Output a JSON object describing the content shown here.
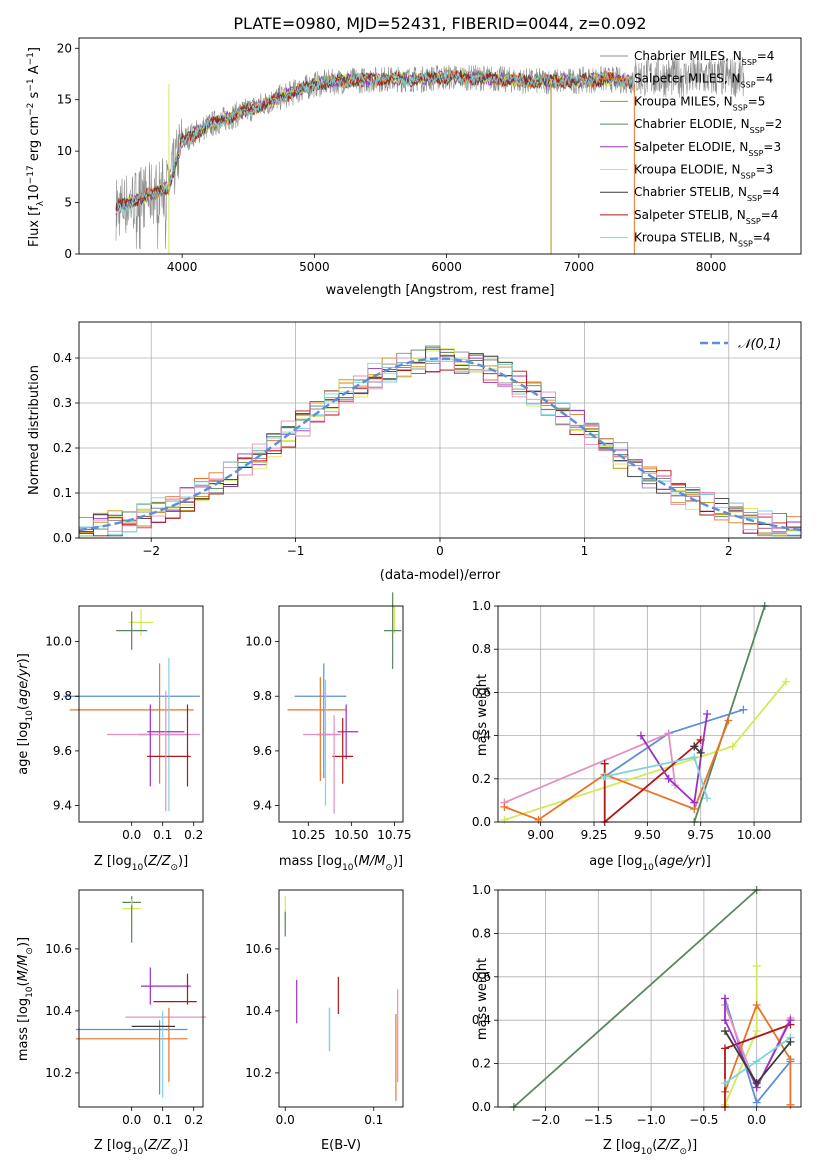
{
  "title": "PLATE=0980, MJD=52431, FIBERID=0044, z=0.092",
  "chart_data": [
    {
      "type": "line",
      "panel": "spectrum",
      "xlabel": "wavelength [Angstrom, rest frame]",
      "ylabel": "Flux [f_λ 10^-17 erg cm^-2 s^-1 A^-1]",
      "xlim": [
        3220,
        8680
      ],
      "ylim": [
        0,
        21
      ],
      "xticks": [
        4000,
        5000,
        6000,
        7000,
        8000
      ],
      "yticks": [
        0,
        5,
        10,
        15,
        20
      ],
      "legend_position": "right",
      "series": [
        {
          "name": "Chabrier MILES, NSSP=4",
          "color": "#8c8c8c"
        },
        {
          "name": "Salpeter MILES, NSSP=4",
          "color": "#e8742a"
        },
        {
          "name": "Kroupa MILES, NSSP=5",
          "color": "#bf8d12"
        },
        {
          "name": "Chabrier ELODIE, NSSP=2",
          "color": "#5a8560"
        },
        {
          "name": "Salpeter ELODIE, NSSP=3",
          "color": "#9b30c4"
        },
        {
          "name": "Kroupa ELODIE, NSSP=3",
          "color": "#d4e85a"
        },
        {
          "name": "Chabrier STELIB, NSSP=4",
          "color": "#3a3a3a"
        },
        {
          "name": "Salpeter STELIB, NSSP=4",
          "color": "#b01818"
        },
        {
          "name": "Kroupa STELIB, NSSP=4",
          "color": "#7fd3e0"
        }
      ],
      "continuum": {
        "x": [
          3500,
          3700,
          3900,
          4000,
          4200,
          4500,
          4800,
          5000,
          5200,
          5500,
          5800,
          6000,
          6300,
          6600,
          6900,
          7200,
          7400
        ],
        "y": [
          4.5,
          5.5,
          6.5,
          11,
          12.5,
          14,
          15.5,
          16.5,
          16.8,
          17,
          17,
          17.2,
          17.1,
          16.8,
          16.8,
          17,
          16.8
        ]
      }
    },
    {
      "type": "line",
      "panel": "residual histogram",
      "xlabel": "(data-model)/error",
      "ylabel": "Normed distribution",
      "xlim": [
        -2.5,
        2.5
      ],
      "ylim": [
        0,
        0.48
      ],
      "xticks": [
        -2,
        -1,
        0,
        1,
        2
      ],
      "yticks": [
        0.0,
        0.1,
        0.2,
        0.3,
        0.4
      ],
      "grid": true,
      "legend_position": "top-right",
      "reference_curve": {
        "name": "𝒩(0,1)",
        "color": "#5b8fd8",
        "dash": true
      },
      "histogram": {
        "bin_width": 0.1,
        "x_range": [
          -2.5,
          2.5
        ],
        "note_series_count": 9
      }
    },
    {
      "type": "scatter",
      "panel": "age vs Z",
      "xlabel": "Z [log10(Z/Z⊙)]",
      "ylabel": "age  [log10(age/yr)]",
      "xlim": [
        -0.17,
        0.23
      ],
      "ylim": [
        9.34,
        10.13
      ],
      "xticks": [
        0.0,
        0.1,
        0.2
      ],
      "yticks": [
        9.4,
        9.6,
        9.8,
        10.0
      ],
      "points": [
        {
          "x": 0.03,
          "y": 10.07,
          "xerr": 0.04,
          "yerr": 0.05,
          "color": "#d4e85a"
        },
        {
          "x": 0.0,
          "y": 10.04,
          "xerr": 0.05,
          "yerr": 0.07,
          "color": "#5a8560"
        },
        {
          "x": 0.0,
          "y": 9.8,
          "xerr": 0.22,
          "yerr": 0.0,
          "color": "#5b8fd8"
        },
        {
          "x": 0.0,
          "y": 9.75,
          "xerr": 0.2,
          "yerr": 0.0,
          "color": "#e8742a"
        },
        {
          "x": 0.09,
          "y": 9.7,
          "xerr": 0.0,
          "yerr": 0.22,
          "color": "#e8742a"
        },
        {
          "x": 0.12,
          "y": 9.66,
          "xerr": 0.0,
          "yerr": 0.28,
          "color": "#7fd3e0"
        },
        {
          "x": 0.1,
          "y": 9.66,
          "xerr": 0.08,
          "yerr": 0.0,
          "color": "#3a3a3a"
        },
        {
          "x": 0.07,
          "y": 9.66,
          "xerr": 0.15,
          "yerr": 0.0,
          "color": "#e58fc0"
        },
        {
          "x": 0.11,
          "y": 9.67,
          "xerr": 0.06,
          "yerr": 0.0,
          "color": "#9b30c4"
        },
        {
          "x": 0.06,
          "y": 9.62,
          "xerr": 0.0,
          "yerr": 0.15,
          "color": "#9b30c4"
        },
        {
          "x": 0.18,
          "y": 9.62,
          "xerr": 0.0,
          "yerr": 0.15,
          "color": "#b01818"
        },
        {
          "x": 0.12,
          "y": 9.58,
          "xerr": 0.07,
          "yerr": 0.0,
          "color": "#b01818"
        },
        {
          "x": 0.11,
          "y": 9.6,
          "xerr": 0.0,
          "yerr": 0.22,
          "color": "#e58fc0"
        }
      ]
    },
    {
      "type": "scatter",
      "panel": "age vs mass",
      "xlabel": "mass [log10(M/M⊙)]",
      "ylabel": "",
      "xlim": [
        10.08,
        10.8
      ],
      "ylim": [
        9.34,
        10.13
      ],
      "xticks": [
        10.25,
        10.5,
        10.75
      ],
      "yticks": [
        9.4,
        9.6,
        9.8,
        10.0
      ],
      "points": [
        {
          "x": 10.75,
          "y": 10.08,
          "xerr": 0.0,
          "yerr": 0.05,
          "color": "#d4e85a"
        },
        {
          "x": 10.74,
          "y": 10.04,
          "xerr": 0.05,
          "yerr": 0.14,
          "color": "#5a8560"
        },
        {
          "x": 10.32,
          "y": 9.8,
          "xerr": 0.15,
          "yerr": 0.0,
          "color": "#5b8fd8"
        },
        {
          "x": 10.3,
          "y": 9.75,
          "xerr": 0.17,
          "yerr": 0.0,
          "color": "#e8742a"
        },
        {
          "x": 10.34,
          "y": 9.71,
          "xerr": 0.0,
          "yerr": 0.21,
          "color": "#5b8fd8"
        },
        {
          "x": 10.32,
          "y": 9.68,
          "xerr": 0.0,
          "yerr": 0.19,
          "color": "#e8742a"
        },
        {
          "x": 10.35,
          "y": 9.63,
          "xerr": 0.0,
          "yerr": 0.23,
          "color": "#7fd3e0"
        },
        {
          "x": 10.36,
          "y": 9.66,
          "xerr": 0.06,
          "yerr": 0.0,
          "color": "#3a3a3a"
        },
        {
          "x": 10.33,
          "y": 9.66,
          "xerr": 0.11,
          "yerr": 0.0,
          "color": "#e58fc0"
        },
        {
          "x": 10.47,
          "y": 9.67,
          "xerr": 0.0,
          "yerr": 0.1,
          "color": "#9b30c4"
        },
        {
          "x": 10.48,
          "y": 9.67,
          "xerr": 0.06,
          "yerr": 0.0,
          "color": "#9b30c4"
        },
        {
          "x": 10.45,
          "y": 9.6,
          "xerr": 0.0,
          "yerr": 0.12,
          "color": "#b01818"
        },
        {
          "x": 10.45,
          "y": 9.58,
          "xerr": 0.06,
          "yerr": 0.0,
          "color": "#b01818"
        },
        {
          "x": 10.4,
          "y": 9.55,
          "xerr": 0.0,
          "yerr": 0.18,
          "color": "#e58fc0"
        }
      ]
    },
    {
      "type": "line",
      "panel": "mass weight vs age",
      "xlabel": "age  [log10(age/yr)]",
      "ylabel": "mass weight",
      "xlim": [
        8.8,
        10.22
      ],
      "ylim": [
        0,
        1.0
      ],
      "xticks": [
        9.0,
        9.25,
        9.5,
        9.75,
        10.0
      ],
      "yticks": [
        0.0,
        0.2,
        0.4,
        0.6,
        0.8,
        1.0
      ],
      "grid": true,
      "series": [
        {
          "color": "#5a8560",
          "x": [
            9.72,
            10.05
          ],
          "y": [
            0.0,
            1.0
          ]
        },
        {
          "color": "#d4e85a",
          "x": [
            8.83,
            9.9,
            10.15
          ],
          "y": [
            0.01,
            0.35,
            0.65
          ]
        },
        {
          "color": "#5b8fd8",
          "x": [
            9.3,
            9.6,
            9.95
          ],
          "y": [
            0.21,
            0.41,
            0.52
          ]
        },
        {
          "color": "#e58fc0",
          "x": [
            8.83,
            9.6,
            9.63
          ],
          "y": [
            0.09,
            0.41,
            0.17
          ]
        },
        {
          "color": "#e8742a",
          "x": [
            8.83,
            8.99,
            9.3,
            9.72,
            9.88
          ],
          "y": [
            0.07,
            0.01,
            0.22,
            0.06,
            0.47
          ]
        },
        {
          "color": "#b01818",
          "x": [
            9.3,
            9.3,
            9.72,
            9.75
          ],
          "y": [
            0.27,
            0.0,
            0.35,
            0.38
          ]
        },
        {
          "color": "#9b30c4",
          "x": [
            9.47,
            9.6,
            9.72,
            9.78
          ],
          "y": [
            0.4,
            0.2,
            0.09,
            0.5
          ]
        },
        {
          "color": "#7fd3e0",
          "x": [
            9.3,
            9.72,
            9.78
          ],
          "y": [
            0.21,
            0.3,
            0.11
          ]
        },
        {
          "color": "#3a3a3a",
          "x": [
            9.72,
            9.75
          ],
          "y": [
            0.35,
            0.32
          ]
        }
      ]
    },
    {
      "type": "scatter",
      "panel": "mass vs Z",
      "xlabel": "Z [log10(Z/Z⊙)]",
      "ylabel": "mass [log10(M/M⊙)]",
      "xlim": [
        -0.17,
        0.23
      ],
      "ylim": [
        10.09,
        10.79
      ],
      "xticks": [
        0.0,
        0.1,
        0.2
      ],
      "yticks": [
        10.2,
        10.4,
        10.6
      ],
      "points": [
        {
          "x": 0.0,
          "y": 10.75,
          "xerr": 0.03,
          "yerr": 0.02,
          "color": "#5a8560"
        },
        {
          "x": 0.0,
          "y": 10.73,
          "xerr": 0.03,
          "yerr": 0.03,
          "color": "#d4e85a"
        },
        {
          "x": 0.0,
          "y": 10.68,
          "xerr": 0.0,
          "yerr": 0.06,
          "color": "#5a8560"
        },
        {
          "x": 0.11,
          "y": 10.48,
          "xerr": 0.08,
          "yerr": 0.0,
          "color": "#9b30c4"
        },
        {
          "x": 0.06,
          "y": 10.48,
          "xerr": 0.0,
          "yerr": 0.06,
          "color": "#9b30c4"
        },
        {
          "x": 0.18,
          "y": 10.47,
          "xerr": 0.0,
          "yerr": 0.05,
          "color": "#b01818"
        },
        {
          "x": 0.14,
          "y": 10.43,
          "xerr": 0.07,
          "yerr": 0.0,
          "color": "#b01818"
        },
        {
          "x": 0.11,
          "y": 10.38,
          "xerr": 0.13,
          "yerr": 0.0,
          "color": "#e58fc0"
        },
        {
          "x": 0.0,
          "y": 10.34,
          "xerr": 0.18,
          "yerr": 0.0,
          "color": "#5b8fd8"
        },
        {
          "x": 0.0,
          "y": 10.31,
          "xerr": 0.18,
          "yerr": 0.0,
          "color": "#e8742a"
        },
        {
          "x": 0.09,
          "y": 10.25,
          "xerr": 0.0,
          "yerr": 0.12,
          "color": "#5b8fd8"
        },
        {
          "x": 0.1,
          "y": 10.26,
          "xerr": 0.0,
          "yerr": 0.14,
          "color": "#7fd3e0"
        },
        {
          "x": 0.12,
          "y": 10.29,
          "xerr": 0.0,
          "yerr": 0.12,
          "color": "#e8742a"
        },
        {
          "x": 0.07,
          "y": 10.35,
          "xerr": 0.07,
          "yerr": 0.0,
          "color": "#3a3a3a"
        }
      ]
    },
    {
      "type": "scatter",
      "panel": "mass vs E(B-V)",
      "xlabel": "E(B-V)",
      "ylabel": "",
      "xlim": [
        -0.007,
        0.133
      ],
      "ylim": [
        10.09,
        10.79
      ],
      "xticks": [
        0.0,
        0.1
      ],
      "yticks": [
        10.2,
        10.4,
        10.6
      ],
      "points": [
        {
          "x": 0.0,
          "y": 10.73,
          "xerr": 0.0,
          "yerr": 0.04,
          "color": "#d4e85a"
        },
        {
          "x": 0.0,
          "y": 10.68,
          "xerr": 0.0,
          "yerr": 0.04,
          "color": "#5a8560"
        },
        {
          "x": 0.013,
          "y": 10.43,
          "xerr": 0.0,
          "yerr": 0.07,
          "color": "#9b30c4"
        },
        {
          "x": 0.06,
          "y": 10.45,
          "xerr": 0.0,
          "yerr": 0.06,
          "color": "#b01818"
        },
        {
          "x": 0.05,
          "y": 10.34,
          "xerr": 0.0,
          "yerr": 0.07,
          "color": "#5b8fd8"
        },
        {
          "x": 0.05,
          "y": 10.34,
          "xerr": 0.0,
          "yerr": 0.07,
          "color": "#7fd3e0"
        },
        {
          "x": 0.125,
          "y": 10.25,
          "xerr": 0.0,
          "yerr": 0.14,
          "color": "#e8742a"
        },
        {
          "x": 0.127,
          "y": 10.32,
          "xerr": 0.0,
          "yerr": 0.15,
          "color": "#e58fc0"
        }
      ]
    },
    {
      "type": "line",
      "panel": "mass weight vs Z",
      "xlabel": "Z [log10(Z/Z⊙)]",
      "ylabel": "mass weight",
      "xlim": [
        -2.45,
        0.42
      ],
      "ylim": [
        0,
        1.0
      ],
      "xticks": [
        -2.0,
        -1.5,
        -1.0,
        -0.5,
        0.0
      ],
      "yticks": [
        0.0,
        0.2,
        0.4,
        0.6,
        0.8,
        1.0
      ],
      "grid": true,
      "series": [
        {
          "color": "#5a8560",
          "x": [
            -2.3,
            0.0
          ],
          "y": [
            0.0,
            1.0
          ]
        },
        {
          "color": "#d4e85a",
          "x": [
            -0.3,
            0.0,
            0.0
          ],
          "y": [
            0.01,
            0.35,
            0.65
          ]
        },
        {
          "color": "#5b8fd8",
          "x": [
            -0.3,
            0.0,
            0.32
          ],
          "y": [
            0.5,
            0.02,
            0.21
          ]
        },
        {
          "color": "#e58fc0",
          "x": [
            -0.3,
            0.0,
            0.32
          ],
          "y": [
            0.47,
            0.09,
            0.41
          ]
        },
        {
          "color": "#e8742a",
          "x": [
            -0.3,
            0.0,
            0.32,
            0.32
          ],
          "y": [
            0.07,
            0.47,
            0.22,
            0.01
          ]
        },
        {
          "color": "#b01818",
          "x": [
            -0.3,
            -0.3,
            0.32
          ],
          "y": [
            0.0,
            0.27,
            0.38
          ]
        },
        {
          "color": "#9b30c4",
          "x": [
            -0.3,
            -0.3,
            0.0,
            0.32
          ],
          "y": [
            0.5,
            0.4,
            0.09,
            0.4
          ]
        },
        {
          "color": "#7fd3e0",
          "x": [
            -0.3,
            0.0,
            0.32
          ],
          "y": [
            0.11,
            0.21,
            0.32
          ]
        },
        {
          "color": "#3a3a3a",
          "x": [
            -0.3,
            0.0,
            0.32
          ],
          "y": [
            0.35,
            0.11,
            0.3
          ]
        }
      ]
    }
  ]
}
